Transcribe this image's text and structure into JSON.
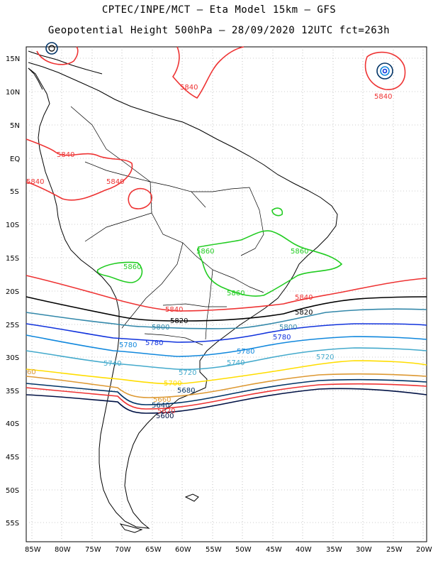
{
  "header": {
    "title_line1": "CPTEC/INPE/MCT –  Eta Model 15km – GFS",
    "title_line2": "Geopotential Height 500hPa – 28/09/2020 12UTC fct=263h"
  },
  "axes": {
    "lat_labels": [
      "15N",
      "10N",
      "5N",
      "EQ",
      "5S",
      "10S",
      "15S",
      "20S",
      "25S",
      "30S",
      "35S",
      "40S",
      "45S",
      "50S",
      "55S"
    ],
    "lon_labels": [
      "85W",
      "80W",
      "75W",
      "70W",
      "65W",
      "60W",
      "55W",
      "50W",
      "45W",
      "40W",
      "35W",
      "30W",
      "25W",
      "20W"
    ]
  },
  "contours": {
    "colors": {
      "c5860": "#22cc22",
      "c5840": "#ee3333",
      "c5820": "#000000",
      "c5800": "#3388aa",
      "c5780": "#1133dd",
      "c5760": "#1188dd",
      "c5740": "#44aacc",
      "c5720": "#ffdd00",
      "c5700": "#dd9933",
      "c5680": "#003366"
    },
    "labels": {
      "l5840_a": "5840",
      "l5840_b": "5840",
      "l5840_c": "5840",
      "l5840_d": "5840",
      "l5840_e": "5840",
      "l5840_f": "5840",
      "l5840_g": "5840",
      "l5860_a": "5860",
      "l5860_b": "5860",
      "l5860_c": "5860",
      "l5860_d": "5860",
      "l5820_a": "5820",
      "l5820_b": "5820",
      "l5800_a": "5800",
      "l5800_b": "5800",
      "l5780_a": "5780",
      "l5780_b": "5780",
      "l5780_c": "5780",
      "l5780_d": "5780",
      "l5740_a": "5740",
      "l5740_b": "5740",
      "l5720_a": "5720",
      "l5720_b": "5720",
      "l5700_a": "5700",
      "l5680_a": "5680",
      "l5660_a": "5660",
      "l5640_a": "5640",
      "l5620_a": "5620",
      "l5600_a": "5600",
      "l_edge": "60"
    }
  }
}
